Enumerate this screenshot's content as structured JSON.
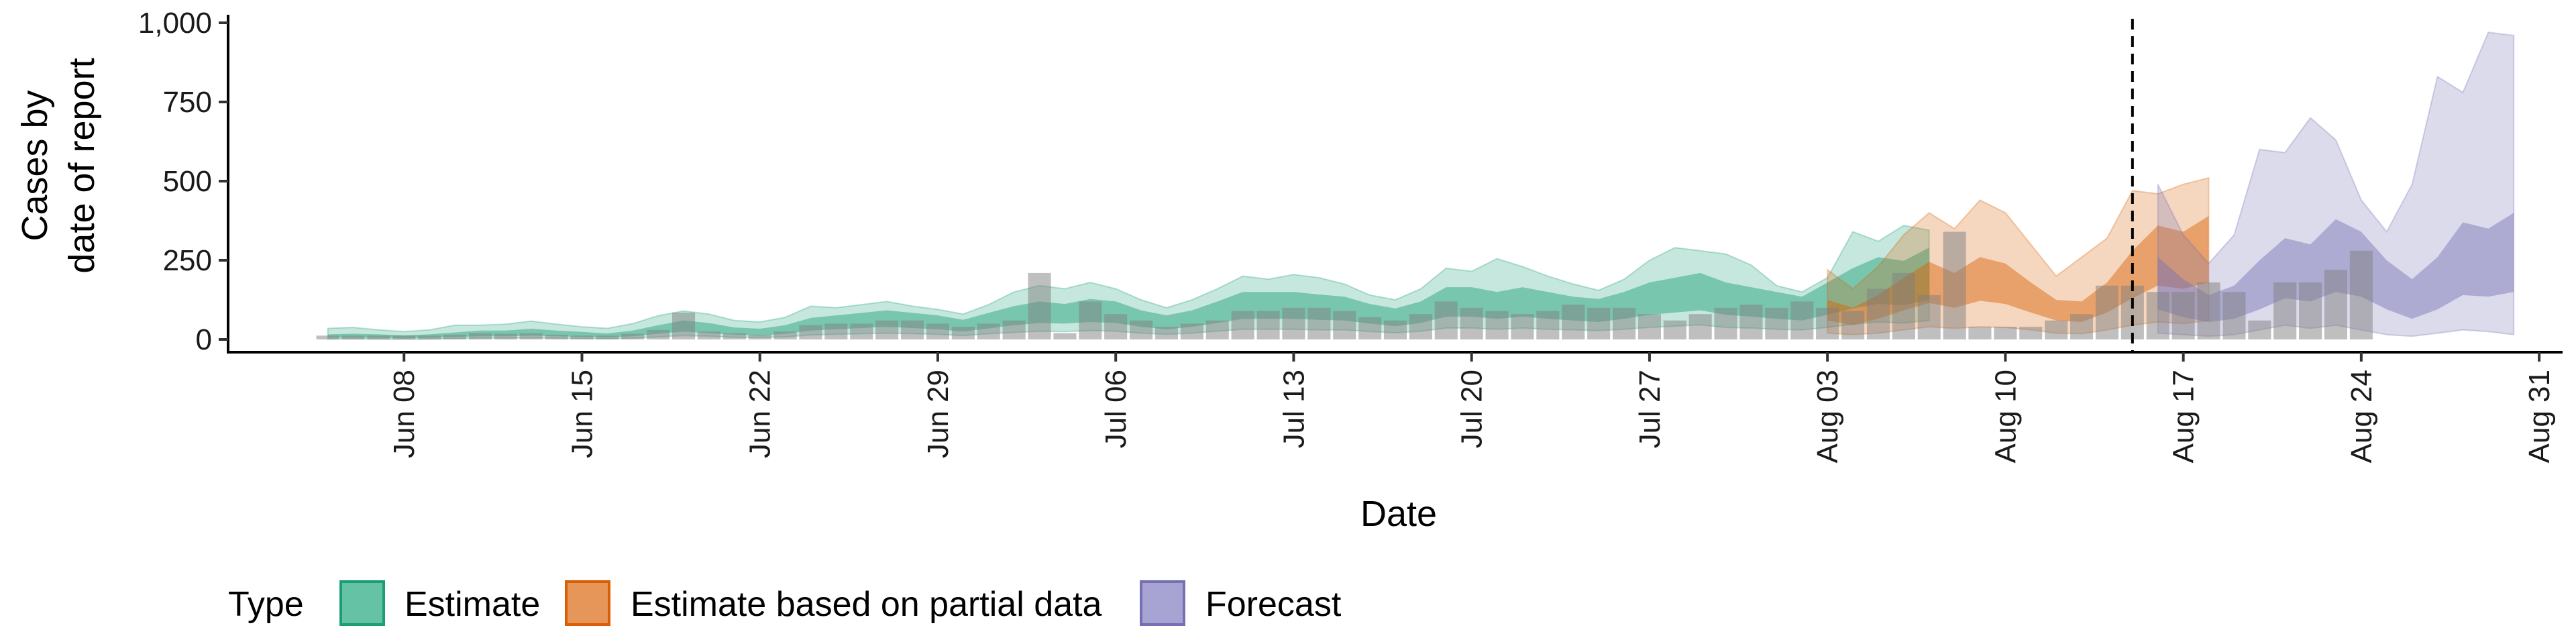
{
  "chart_data": {
    "type": "area",
    "xlabel": "Date",
    "ylabel_lines": [
      "Cases by",
      "date of report"
    ],
    "ylim": [
      0,
      1000
    ],
    "yticks": [
      0,
      250,
      500,
      750,
      1000
    ],
    "ytick_labels": [
      "0",
      "250",
      "500",
      "750",
      "1,000"
    ],
    "xlim": [
      "2020-06-01",
      "2020-09-01"
    ],
    "xticks": [
      "2020-06-08",
      "2020-06-15",
      "2020-06-22",
      "2020-06-29",
      "2020-07-06",
      "2020-07-13",
      "2020-07-20",
      "2020-07-27",
      "2020-08-03",
      "2020-08-10",
      "2020-08-17",
      "2020-08-24",
      "2020-08-31"
    ],
    "xtick_labels": [
      "Jun 08",
      "Jun 15",
      "Jun 22",
      "Jun 29",
      "Jul 06",
      "Jul 13",
      "Jul 20",
      "Jul 27",
      "Aug 03",
      "Aug 10",
      "Aug 17",
      "Aug 24",
      "Aug 31"
    ],
    "forecast_line_date": "2020-08-15",
    "reported_cases": {
      "start_date": "2020-06-05",
      "values": [
        12,
        12,
        12,
        12,
        12,
        15,
        20,
        18,
        20,
        15,
        12,
        12,
        18,
        30,
        85,
        25,
        20,
        15,
        25,
        45,
        50,
        50,
        60,
        60,
        50,
        40,
        50,
        60,
        210,
        20,
        120,
        80,
        60,
        40,
        50,
        60,
        90,
        90,
        100,
        100,
        90,
        70,
        60,
        80,
        120,
        100,
        90,
        80,
        90,
        110,
        100,
        100,
        80,
        60,
        80,
        100,
        110,
        100,
        120,
        100,
        90,
        160,
        210,
        140,
        340,
        40,
        40,
        40,
        60,
        80,
        170,
        170,
        150,
        150,
        180,
        150,
        60,
        180,
        180,
        220,
        280
      ]
    },
    "series": [
      {
        "name": "Estimate",
        "color": "#1b9e77",
        "start_date": "2020-06-05",
        "median": [
          10,
          12,
          10,
          8,
          10,
          14,
          18,
          18,
          22,
          18,
          15,
          12,
          18,
          30,
          40,
          35,
          25,
          22,
          30,
          45,
          50,
          55,
          60,
          55,
          50,
          40,
          55,
          70,
          80,
          75,
          85,
          80,
          60,
          50,
          60,
          80,
          100,
          100,
          100,
          95,
          90,
          75,
          65,
          80,
          110,
          110,
          100,
          110,
          100,
          90,
          85,
          100,
          120,
          130,
          140,
          120,
          110,
          100,
          90,
          120,
          150,
          175,
          165,
          195
        ],
        "inner_lower": [
          5,
          6,
          5,
          4,
          5,
          8,
          10,
          10,
          12,
          10,
          8,
          6,
          10,
          18,
          25,
          20,
          15,
          12,
          18,
          28,
          32,
          36,
          40,
          36,
          32,
          25,
          35,
          45,
          52,
          50,
          55,
          52,
          40,
          32,
          40,
          52,
          65,
          65,
          65,
          62,
          60,
          50,
          42,
          52,
          72,
          72,
          65,
          72,
          65,
          60,
          55,
          65,
          78,
          85,
          92,
          78,
          72,
          65,
          60,
          78,
          98,
          112,
          108,
          125
        ],
        "inner_upper": [
          16,
          18,
          16,
          13,
          16,
          22,
          28,
          28,
          34,
          28,
          24,
          19,
          28,
          45,
          60,
          52,
          38,
          34,
          45,
          68,
          76,
          84,
          92,
          84,
          76,
          62,
          84,
          105,
          120,
          112,
          128,
          120,
          92,
          76,
          92,
          120,
          150,
          150,
          150,
          142,
          135,
          112,
          98,
          120,
          165,
          165,
          150,
          165,
          150,
          135,
          128,
          150,
          180,
          195,
          210,
          180,
          165,
          150,
          135,
          180,
          225,
          260,
          248,
          290
        ],
        "outer_lower": [
          1,
          2,
          1,
          1,
          1,
          3,
          4,
          4,
          5,
          4,
          3,
          2,
          4,
          8,
          12,
          10,
          7,
          6,
          8,
          14,
          16,
          18,
          20,
          18,
          16,
          12,
          18,
          22,
          26,
          25,
          28,
          26,
          20,
          16,
          20,
          26,
          32,
          32,
          32,
          30,
          30,
          25,
          21,
          26,
          36,
          36,
          32,
          36,
          32,
          30,
          28,
          32,
          38,
          42,
          46,
          38,
          36,
          32,
          30,
          38,
          48,
          55,
          52,
          60
        ],
        "outer_upper": [
          35,
          38,
          30,
          25,
          30,
          45,
          45,
          48,
          58,
          48,
          40,
          35,
          50,
          75,
          90,
          80,
          60,
          55,
          70,
          105,
          100,
          110,
          120,
          105,
          95,
          80,
          110,
          150,
          170,
          160,
          180,
          160,
          125,
          100,
          125,
          160,
          200,
          190,
          205,
          195,
          175,
          140,
          125,
          160,
          225,
          215,
          255,
          230,
          200,
          175,
          155,
          190,
          250,
          290,
          280,
          270,
          235,
          170,
          150,
          195,
          340,
          310,
          360,
          345
        ]
      },
      {
        "name": "Estimate based on partial data",
        "color": "#d95f02",
        "start_date": "2020-08-03",
        "median": [
          90,
          70,
          100,
          140,
          175,
          150,
          185,
          170,
          130,
          90,
          85,
          130,
          200,
          260,
          240,
          280
        ],
        "inner_lower": [
          60,
          45,
          65,
          92,
          115,
          100,
          122,
          112,
          85,
          60,
          55,
          85,
          130,
          170,
          160,
          180
        ],
        "inner_upper": [
          125,
          100,
          140,
          195,
          245,
          210,
          260,
          240,
          180,
          125,
          120,
          180,
          280,
          360,
          340,
          390
        ],
        "outer_lower": [
          20,
          15,
          20,
          30,
          40,
          35,
          40,
          38,
          30,
          20,
          18,
          30,
          45,
          55,
          50,
          60
        ],
        "outer_upper": [
          220,
          160,
          230,
          330,
          400,
          350,
          440,
          400,
          300,
          200,
          260,
          320,
          470,
          460,
          490,
          510
        ]
      },
      {
        "name": "Forecast",
        "color": "#7570b3",
        "start_date": "2020-08-16",
        "median": [
          165,
          120,
          90,
          105,
          160,
          215,
          200,
          260,
          230,
          160,
          110,
          165,
          240,
          230,
          260
        ],
        "inner_lower": [
          95,
          70,
          55,
          65,
          95,
          130,
          120,
          150,
          135,
          95,
          65,
          95,
          140,
          135,
          150
        ],
        "inner_upper": [
          260,
          190,
          140,
          170,
          250,
          320,
          300,
          380,
          340,
          250,
          190,
          260,
          370,
          350,
          400
        ],
        "outer_lower": [
          20,
          15,
          10,
          15,
          30,
          45,
          35,
          45,
          30,
          15,
          10,
          20,
          30,
          25,
          15
        ],
        "outer_upper": [
          490,
          330,
          240,
          330,
          600,
          590,
          700,
          630,
          440,
          340,
          490,
          830,
          780,
          970,
          960
        ]
      }
    ],
    "legend": {
      "title": "Type",
      "position": "bottom",
      "items": [
        {
          "label": "Estimate",
          "fill": "#66c2a5",
          "stroke": "#1b9e77"
        },
        {
          "label": "Estimate based on partial data",
          "fill": "#e7965a",
          "stroke": "#d95f02"
        },
        {
          "label": "Forecast",
          "fill": "#a7a3d3",
          "stroke": "#7570b3"
        }
      ]
    },
    "grid": false
  }
}
